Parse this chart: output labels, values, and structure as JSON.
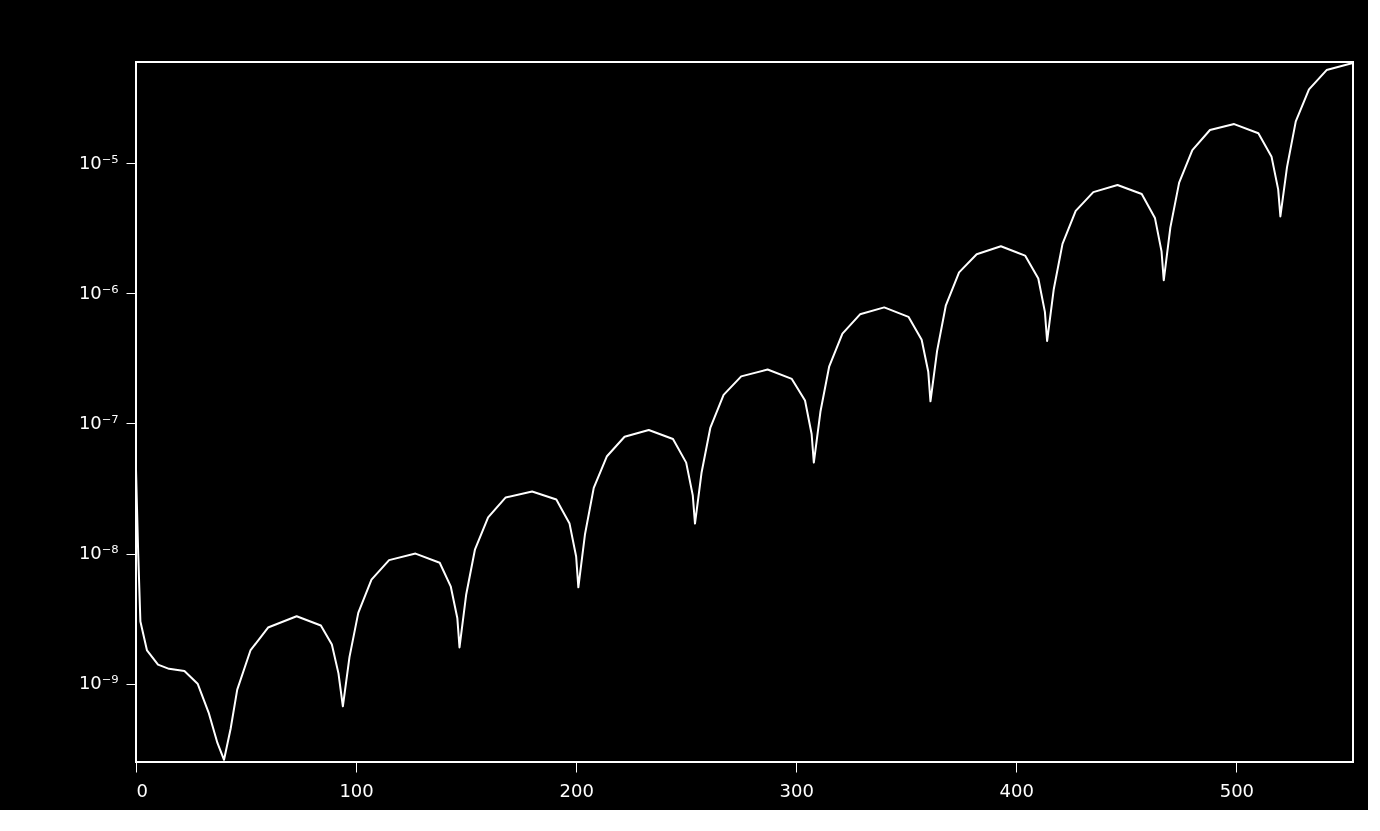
{
  "chart_data": {
    "type": "line",
    "log": "y",
    "grid": false,
    "marker": "none",
    "line_style": "solid",
    "xlim": [
      0,
      553
    ],
    "ylim": [
      2.5e-10,
      6e-05
    ],
    "xticks": [
      0,
      100,
      200,
      300,
      400,
      500
    ],
    "yticks": [
      {
        "value": 1e-09,
        "label": "10⁻⁹"
      },
      {
        "value": 1e-08,
        "label": "10⁻⁸"
      },
      {
        "value": 1e-07,
        "label": "10⁻⁷"
      },
      {
        "value": 1e-06,
        "label": "10⁻⁶"
      },
      {
        "value": 1e-05,
        "label": "10⁻⁵"
      }
    ],
    "series": [
      {
        "color": "#ffffff",
        "x": [
          0,
          1,
          2,
          5,
          10,
          15,
          22,
          28,
          33,
          37,
          40,
          43,
          46,
          52,
          60,
          73,
          84,
          89,
          92,
          94,
          97,
          101,
          107,
          115,
          127,
          138,
          143,
          146,
          147,
          150,
          154,
          160,
          168,
          180,
          191,
          197,
          200,
          201,
          204,
          208,
          214,
          222,
          233,
          244,
          250,
          253,
          254,
          257,
          261,
          267,
          275,
          287,
          298,
          304,
          307,
          308,
          311,
          315,
          321,
          329,
          340,
          351,
          357,
          360,
          361,
          364,
          368,
          374,
          382,
          393,
          404,
          410,
          413,
          414,
          417,
          421,
          427,
          435,
          446,
          457,
          463,
          466,
          467,
          470,
          474,
          480,
          488,
          499,
          510,
          516,
          519,
          520,
          523,
          527,
          533,
          541,
          553
        ],
        "values": [
          4.4e-08,
          1e-08,
          3e-09,
          1.8e-09,
          1.4e-09,
          1.3e-09,
          1.25e-09,
          1e-09,
          6e-10,
          3.5e-10,
          2.6e-10,
          4.5e-10,
          9e-10,
          1.8e-09,
          2.7e-09,
          3.3e-09,
          2.8e-09,
          2e-09,
          1.2e-09,
          6.7e-10,
          1.6e-09,
          3.5e-09,
          6.3e-09,
          8.9e-09,
          1e-08,
          8.5e-09,
          5.6e-09,
          3.2e-09,
          1.9e-09,
          4.8e-09,
          1.07e-08,
          1.9e-08,
          2.7e-08,
          3e-08,
          2.6e-08,
          1.7e-08,
          9.5e-09,
          5.5e-09,
          1.4e-08,
          3.2e-08,
          5.6e-08,
          7.9e-08,
          8.9e-08,
          7.6e-08,
          5e-08,
          2.8e-08,
          1.7e-08,
          4.2e-08,
          9.3e-08,
          1.66e-07,
          2.3e-07,
          2.6e-07,
          2.2e-07,
          1.5e-07,
          8.3e-08,
          5e-08,
          1.23e-07,
          2.75e-07,
          4.9e-07,
          6.9e-07,
          7.8e-07,
          6.6e-07,
          4.4e-07,
          2.5e-07,
          1.48e-07,
          3.6e-07,
          8.1e-07,
          1.45e-06,
          2e-06,
          2.3e-06,
          1.95e-06,
          1.3e-06,
          7.2e-07,
          4.3e-07,
          1.07e-06,
          2.4e-06,
          4.3e-06,
          6e-06,
          6.8e-06,
          5.8e-06,
          3.8e-06,
          2.1e-06,
          1.26e-06,
          3.2e-06,
          7.1e-06,
          1.26e-05,
          1.8e-05,
          2e-05,
          1.7e-05,
          1.12e-05,
          6.3e-06,
          3.9e-06,
          9.3e-06,
          2.1e-05,
          3.7e-05,
          5.2e-05,
          5.9e-05
        ]
      }
    ]
  }
}
